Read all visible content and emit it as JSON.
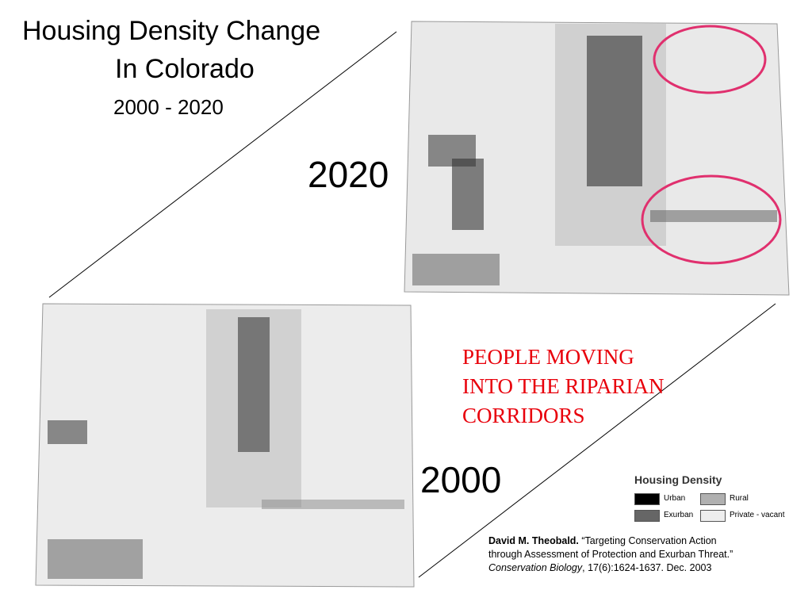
{
  "title": {
    "line1": "Housing Density Change",
    "line2": "In Colorado",
    "subtitle": "2000 - 2020"
  },
  "maps": [
    {
      "label": "2020"
    },
    {
      "label": "2000"
    }
  ],
  "annotation": [
    "PEOPLE MOVING",
    "INTO THE RIPARIAN",
    "CORRIDORS"
  ],
  "legend": {
    "title": "Housing Density",
    "items": [
      {
        "label": "Urban"
      },
      {
        "label": "Rural"
      },
      {
        "label": "Exurban"
      },
      {
        "label": "Private - vacant"
      }
    ]
  },
  "citation": {
    "author": "David M. Theobald.",
    "title_line1": "“Targeting Conservation Action",
    "title_line2": "through Assessment of Protection and Exurban Threat.”",
    "journal": "Conservation Biology",
    "details": ", 17(6):1624-1637. Dec. 2003"
  }
}
